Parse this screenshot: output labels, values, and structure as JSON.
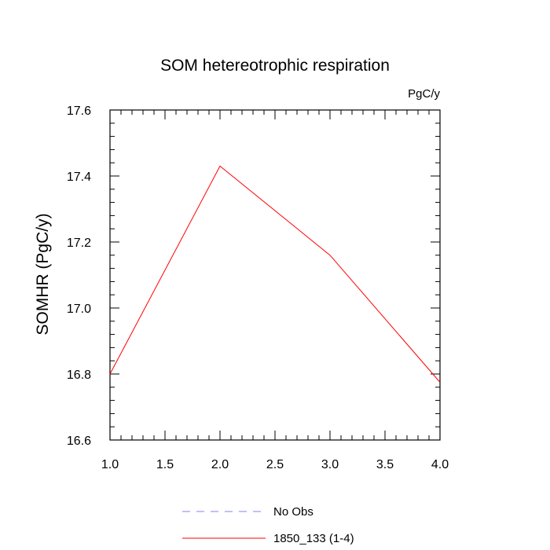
{
  "chart_data": {
    "type": "line",
    "title": "SOM hetereotrophic respiration",
    "units_label": "PgC/y",
    "ylabel": "SOMHR  (PgC/y)",
    "xlabel": "",
    "xlim": [
      1.0,
      4.0
    ],
    "ylim": [
      16.6,
      17.6
    ],
    "x_ticks": [
      1.0,
      1.5,
      2.0,
      2.5,
      3.0,
      3.5,
      4.0
    ],
    "x_tick_labels": [
      "1.0",
      "1.5",
      "2.0",
      "2.5",
      "3.0",
      "3.5",
      "4.0"
    ],
    "y_ticks": [
      16.6,
      16.8,
      17.0,
      17.2,
      17.4,
      17.6
    ],
    "y_tick_labels": [
      "16.6",
      "16.8",
      "17.0",
      "17.2",
      "17.4",
      "17.6"
    ],
    "grid": false,
    "legend_position": "bottom",
    "series": [
      {
        "name": "1850_133 (1-4)",
        "color": "#ff0000",
        "style": "solid",
        "x": [
          1,
          2,
          3,
          4
        ],
        "y": [
          16.8,
          17.43,
          17.16,
          16.775
        ]
      }
    ],
    "legend": [
      {
        "label": "No Obs",
        "color": "#8080ff",
        "style": "dashed"
      },
      {
        "label": "1850_133 (1-4)",
        "color": "#ff0000",
        "style": "solid"
      }
    ]
  }
}
